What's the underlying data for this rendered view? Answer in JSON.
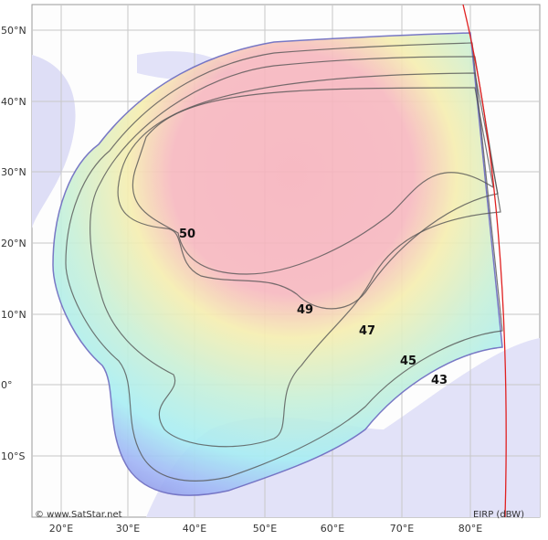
{
  "map": {
    "latitude_labels": [
      "50°N",
      "40°N",
      "30°N",
      "20°N",
      "10°N",
      "0°",
      "10°S"
    ],
    "longitude_labels": [
      "20°E",
      "30°E",
      "40°E",
      "50°E",
      "60°E",
      "70°E",
      "80°E"
    ],
    "contour_levels": [
      50,
      49,
      47,
      45,
      43
    ],
    "credit": "© www.SatStar.net",
    "legend": "EIRP (dBW)"
  }
}
